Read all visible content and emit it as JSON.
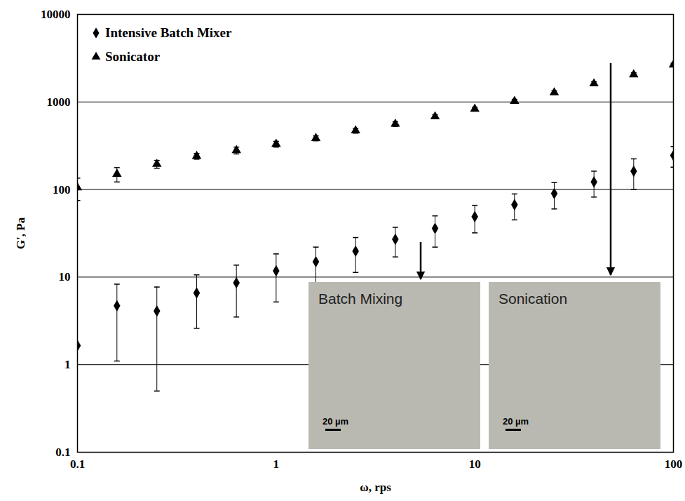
{
  "chart_data": {
    "type": "scatter",
    "x_label": "ω, rps",
    "y_label": "G', Pa",
    "log": true,
    "grid": "y",
    "legend": "top-left",
    "xlim": [
      0.1,
      100
    ],
    "xticks": [
      0.1,
      1,
      10,
      100
    ],
    "ylim": [
      0.1,
      10000
    ],
    "yticks": [
      0.1,
      1,
      10,
      100,
      1000,
      10000
    ],
    "x": [
      0.1,
      0.158,
      0.251,
      0.398,
      0.631,
      1,
      1.585,
      2.512,
      3.981,
      6.31,
      10,
      15.85,
      25.12,
      39.81,
      63.1,
      100
    ],
    "series": [
      {
        "name": "Intensive Batch Mixer",
        "color": "#000000",
        "marker": "diamond",
        "values": [
          1.65,
          4.7,
          4.1,
          6.6,
          8.6,
          11.8,
          15,
          19.8,
          27,
          36,
          49,
          67,
          90,
          122,
          162,
          245
        ],
        "errors": [
          0,
          3.6,
          3.6,
          4.0,
          5.1,
          6.6,
          7,
          8.5,
          10,
          14,
          17,
          22,
          30,
          40,
          62,
          65
        ]
      },
      {
        "name": "Sonicator",
        "color": "#000000",
        "marker": "triangle",
        "values": [
          105,
          150,
          195,
          240,
          280,
          330,
          385,
          470,
          560,
          680,
          830,
          1020,
          1280,
          1620,
          2050,
          2650
        ],
        "errors": [
          30,
          28,
          20,
          18,
          25,
          25,
          25,
          30,
          35,
          35,
          40,
          50,
          60,
          80,
          100,
          120
        ]
      }
    ],
    "insets": [
      {
        "label": "Batch Mixing",
        "scale_bar": "20 µm"
      },
      {
        "label": "Sonication",
        "scale_bar": "20 µm"
      }
    ]
  }
}
